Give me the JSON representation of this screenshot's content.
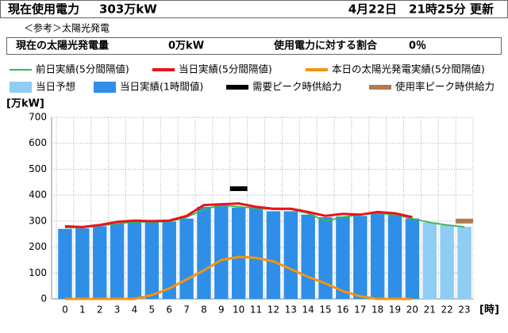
{
  "header": {
    "title": "現在使用電力",
    "current": "303万kW",
    "updated": "4月22日　21時25分 更新",
    "ref": "＜参考＞太陽光発電",
    "solar_label": "現在の太陽光発電量",
    "solar_value": "0万kW",
    "ratio_label": "使用電力に対する割合",
    "ratio_value": "0％"
  },
  "chart_data": {
    "type": "bar",
    "y_label": "[万kW]",
    "x_label": "[時]",
    "categories": [
      "0",
      "1",
      "2",
      "3",
      "4",
      "5",
      "6",
      "7",
      "8",
      "9",
      "10",
      "11",
      "12",
      "13",
      "14",
      "15",
      "16",
      "17",
      "18",
      "19",
      "20",
      "21",
      "22",
      "23"
    ],
    "ylim": [
      0,
      700
    ],
    "yticks": [
      0,
      100,
      200,
      300,
      400,
      500,
      600,
      700
    ],
    "grid": true,
    "series": [
      {
        "name": "前日実績(5分間隔値)",
        "type": "line",
        "color": "#3cb44b",
        "values": [
          275,
          275,
          282,
          290,
          297,
          297,
          298,
          315,
          345,
          362,
          355,
          350,
          345,
          345,
          330,
          300,
          315,
          325,
          330,
          325,
          310,
          295,
          285,
          278
        ]
      },
      {
        "name": "当日実績(5分間隔値)",
        "type": "line",
        "color": "#e8141c",
        "values": [
          280,
          277,
          285,
          297,
          302,
          300,
          302,
          320,
          362,
          365,
          368,
          355,
          348,
          348,
          335,
          320,
          328,
          325,
          335,
          330,
          315,
          null,
          null,
          null
        ]
      },
      {
        "name": "本日の太陽光発電実績(5分間隔値)",
        "type": "line",
        "color": "#f7930f",
        "values": [
          0,
          0,
          0,
          0,
          0,
          15,
          40,
          75,
          110,
          150,
          162,
          158,
          145,
          115,
          85,
          60,
          30,
          10,
          0,
          0,
          0,
          null,
          null,
          null
        ]
      },
      {
        "name": "当日予想",
        "type": "bar",
        "color": "#8fcdf5",
        "values": [
          null,
          null,
          null,
          null,
          null,
          null,
          null,
          null,
          null,
          null,
          null,
          null,
          null,
          null,
          null,
          null,
          null,
          null,
          null,
          null,
          null,
          295,
          285,
          278
        ]
      },
      {
        "name": "当日実績(1時間値)",
        "type": "bar",
        "color": "#2f8fe8",
        "values": [
          270,
          272,
          280,
          292,
          300,
          297,
          298,
          310,
          355,
          365,
          352,
          350,
          338,
          338,
          325,
          315,
          318,
          320,
          328,
          325,
          310,
          null,
          null,
          null
        ]
      },
      {
        "name": "需要ピーク時供給力",
        "type": "marker",
        "color": "#000000",
        "values": [
          null,
          null,
          null,
          null,
          null,
          null,
          null,
          null,
          null,
          null,
          425,
          null,
          null,
          null,
          null,
          null,
          null,
          null,
          null,
          null,
          null,
          null,
          null,
          null
        ]
      },
      {
        "name": "使用率ピーク時供給力",
        "type": "marker",
        "color": "#b07a52",
        "values": [
          null,
          null,
          null,
          null,
          null,
          null,
          null,
          null,
          null,
          null,
          null,
          null,
          null,
          null,
          null,
          null,
          null,
          null,
          null,
          null,
          null,
          null,
          null,
          300
        ]
      }
    ]
  }
}
